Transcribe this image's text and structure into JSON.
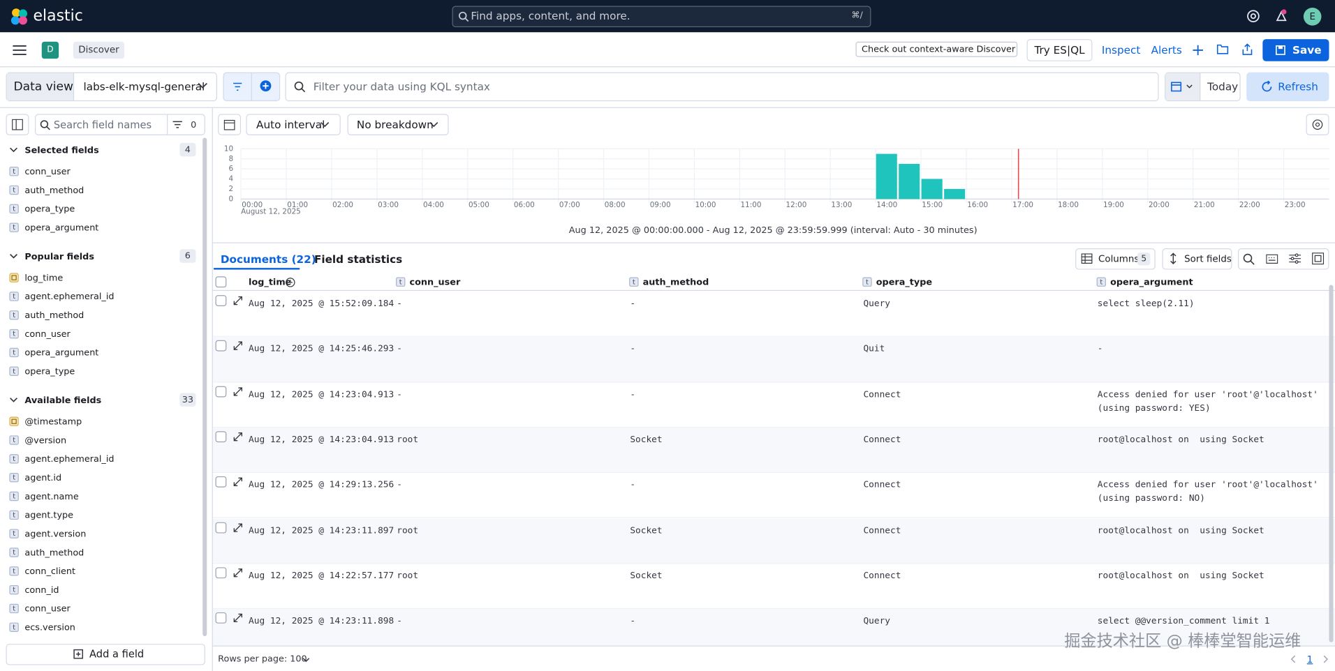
{
  "header": {
    "logo": "elastic",
    "search_placeholder": "Find apps, content, and more.",
    "search_shortcut": "⌘/",
    "avatar": "E"
  },
  "toolbar": {
    "app_badge": "D",
    "breadcrumb": "Discover",
    "context_aware": "Check out context-aware Discover",
    "try_esql": "Try ES|QL",
    "inspect": "Inspect",
    "alerts": "Alerts",
    "save": "Save"
  },
  "query_bar": {
    "data_view_label": "Data view",
    "data_view": "labs-elk-mysql-general",
    "kql_placeholder": "Filter your data using KQL syntax",
    "date": "Today",
    "refresh": "Refresh"
  },
  "sidebar": {
    "search_placeholder": "Search field names",
    "filter_count": 0,
    "sections": [
      {
        "title": "Selected fields",
        "count": 4,
        "fields": [
          {
            "name": "conn_user",
            "type": "t"
          },
          {
            "name": "auth_method",
            "type": "t"
          },
          {
            "name": "opera_type",
            "type": "t"
          },
          {
            "name": "opera_argument",
            "type": "t"
          }
        ]
      },
      {
        "title": "Popular fields",
        "count": 6,
        "fields": [
          {
            "name": "log_time"
          },
          {
            "name": "agent.ephemeral_id",
            "type": "t"
          },
          {
            "name": "auth_method",
            "type": "t"
          },
          {
            "name": "conn_user",
            "type": "t"
          },
          {
            "name": "opera_argument",
            "type": "t"
          },
          {
            "name": "opera_type",
            "type": "t"
          }
        ]
      },
      {
        "title": "Available fields",
        "count": 33,
        "fields": [
          {
            "name": "@timestamp"
          },
          {
            "name": "@version",
            "type": "t"
          },
          {
            "name": "agent.ephemeral_id",
            "type": "t"
          },
          {
            "name": "agent.id",
            "type": "t"
          },
          {
            "name": "agent.name",
            "type": "t"
          },
          {
            "name": "agent.type",
            "type": "t"
          },
          {
            "name": "agent.version",
            "type": "t"
          },
          {
            "name": "auth_method",
            "type": "t"
          },
          {
            "name": "conn_client",
            "type": "t"
          },
          {
            "name": "conn_id",
            "type": "t"
          },
          {
            "name": "conn_user",
            "type": "t"
          },
          {
            "name": "ecs.version",
            "type": "t"
          }
        ]
      }
    ],
    "add_field": "Add a field"
  },
  "chart_controls": {
    "interval": "Auto interval",
    "breakdown": "No breakdown"
  },
  "histogram": {
    "type": "histogram",
    "color": "#1fc4bd",
    "xlim": [
      0,
      24
    ],
    "xticks": [
      {
        "value": 0,
        "label": "00:00"
      },
      {
        "value": 1,
        "label": "01:00"
      },
      {
        "value": 2,
        "label": "02:00"
      },
      {
        "value": 3,
        "label": "03:00"
      },
      {
        "value": 4,
        "label": "04:00"
      },
      {
        "value": 5,
        "label": "05:00"
      },
      {
        "value": 6,
        "label": "06:00"
      },
      {
        "value": 7,
        "label": "07:00"
      },
      {
        "value": 8,
        "label": "08:00"
      },
      {
        "value": 9,
        "label": "09:00"
      },
      {
        "value": 10,
        "label": "10:00"
      },
      {
        "value": 11,
        "label": "11:00"
      },
      {
        "value": 12,
        "label": "12:00"
      },
      {
        "value": 13,
        "label": "13:00"
      },
      {
        "value": 14,
        "label": "14:00"
      },
      {
        "value": 15,
        "label": "15:00"
      },
      {
        "value": 16,
        "label": "16:00"
      },
      {
        "value": 17,
        "label": "17:00"
      },
      {
        "value": 18,
        "label": "18:00"
      },
      {
        "value": 19,
        "label": "19:00"
      },
      {
        "value": 20,
        "label": "20:00"
      },
      {
        "value": 21,
        "label": "21:00"
      },
      {
        "value": 22,
        "label": "22:00"
      },
      {
        "value": 23,
        "label": "23:00"
      }
    ],
    "x_sublabel": "August 12, 2025",
    "ylim": [
      0,
      10
    ],
    "yticks": [
      0,
      2,
      4,
      6,
      8,
      10
    ],
    "bins": [
      14,
      14.5,
      15,
      15.5,
      16
    ],
    "values": [
      9,
      7,
      4,
      2
    ],
    "now_marker": 17.15,
    "now_marker_color": "#e7484d",
    "caption": "Aug 12, 2025 @ 00:00:00.000 - Aug 12, 2025 @ 23:59:59.999 (interval: Auto - 30 minutes)"
  },
  "tabs": {
    "documents": "Documents (22)",
    "field_statistics": "Field statistics",
    "columns": "Columns",
    "columns_count": 5,
    "sort_fields": "Sort fields"
  },
  "table": {
    "columns": [
      {
        "name": "log_time"
      },
      {
        "name": "conn_user",
        "type": "t"
      },
      {
        "name": "auth_method",
        "type": "t"
      },
      {
        "name": "opera_type",
        "type": "t"
      },
      {
        "name": "opera_argument",
        "type": "t"
      }
    ],
    "rows": [
      [
        "Aug 12, 2025 @ 15:52:09.184",
        "-",
        "-",
        "Query",
        "select sleep(2.11)"
      ],
      [
        "Aug 12, 2025 @ 14:25:46.293",
        "-",
        "-",
        "Quit",
        "-"
      ],
      [
        "Aug 12, 2025 @ 14:23:04.913",
        "-",
        "-",
        "Connect",
        "Access denied for user 'root'@'localhost' (using password: YES)"
      ],
      [
        "Aug 12, 2025 @ 14:23:04.913",
        "root",
        "Socket",
        "Connect",
        "root@localhost on  using Socket"
      ],
      [
        "Aug 12, 2025 @ 14:29:13.256",
        "-",
        "-",
        "Connect",
        "Access denied for user 'root'@'localhost' (using password: NO)"
      ],
      [
        "Aug 12, 2025 @ 14:23:11.897",
        "root",
        "Socket",
        "Connect",
        "root@localhost on  using Socket"
      ],
      [
        "Aug 12, 2025 @ 14:22:57.177",
        "root",
        "Socket",
        "Connect",
        "root@localhost on  using Socket"
      ],
      [
        "Aug 12, 2025 @ 14:23:11.898",
        "-",
        "-",
        "Query",
        "select @@version_comment limit 1"
      ]
    ]
  },
  "footer": {
    "rows_per_page": "Rows per page: 100",
    "page": "1",
    "watermark": "掘金技术社区 @ 棒棒堂智能运维"
  }
}
